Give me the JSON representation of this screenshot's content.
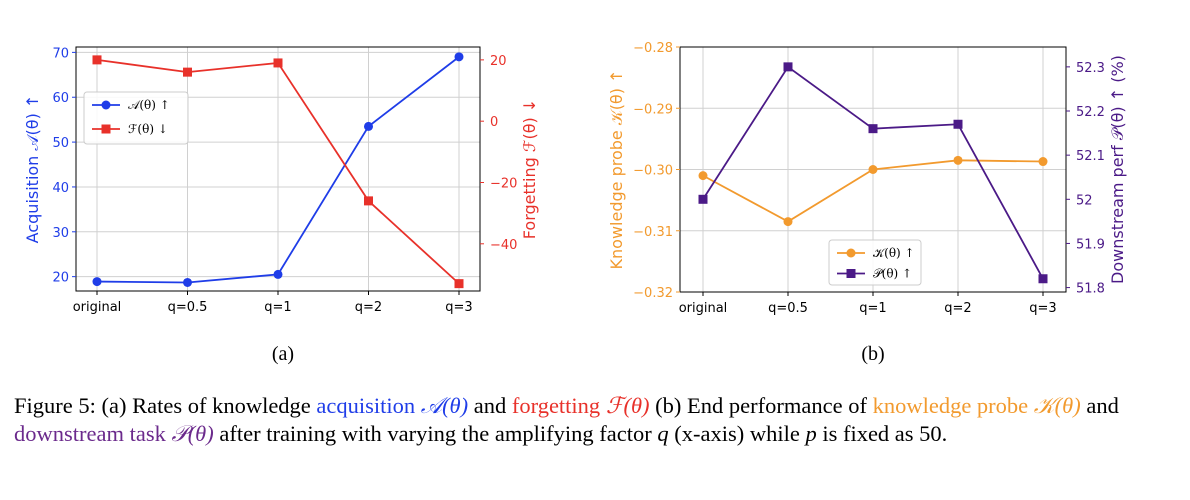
{
  "chart_data": [
    {
      "type": "line",
      "categories": [
        "original",
        "q=0.5",
        "q=1",
        "q=2",
        "q=3"
      ],
      "y_left": {
        "label": "Acquisition 𝒜(θ) ↑",
        "ticks": [
          20,
          30,
          40,
          50,
          60,
          70
        ],
        "range": [
          16.8,
          71.2
        ],
        "color": "#1f3de8"
      },
      "y_right": {
        "label": "Forgetting ℱ(θ) ↓",
        "ticks": [
          -40,
          -20,
          0,
          20
        ],
        "range": [
          -55.4,
          24.2
        ],
        "color": "#e8312a"
      },
      "series": [
        {
          "name": "𝒜(θ) ↑",
          "axis": "left",
          "marker": "circle",
          "color": "#1f3de8",
          "values": [
            18.9,
            18.7,
            20.5,
            53.5,
            69.0
          ]
        },
        {
          "name": "ℱ(θ) ↓",
          "axis": "right",
          "marker": "square",
          "color": "#e8312a",
          "values": [
            20.0,
            16.0,
            19.0,
            -26.0,
            -53.0
          ]
        }
      ],
      "legend": "upper-left",
      "grid": true,
      "sublabel": "(a)"
    },
    {
      "type": "line",
      "categories": [
        "original",
        "q=0.5",
        "q=1",
        "q=2",
        "q=3"
      ],
      "y_left": {
        "label": "Knowledge probe 𝒦(θ) ↑",
        "ticks": [
          -0.32,
          -0.31,
          -0.3,
          -0.29,
          -0.28
        ],
        "tick_labels": [
          "−0.32",
          "−0.31",
          "−0.30",
          "−0.29",
          "−0.28"
        ],
        "range": [
          -0.32,
          -0.28
        ],
        "color": "#f29a2e"
      },
      "y_right": {
        "label": "Downstream perf 𝒫(θ) ↑ (%)",
        "ticks": [
          51.8,
          51.9,
          52.0,
          52.1,
          52.2,
          52.3
        ],
        "range": [
          51.79,
          52.345
        ],
        "color": "#4b1a87"
      },
      "series": [
        {
          "name": "𝒦(θ) ↑",
          "axis": "left",
          "marker": "circle",
          "color": "#f29a2e",
          "values": [
            -0.301,
            -0.3085,
            -0.3,
            -0.2985,
            -0.2987
          ]
        },
        {
          "name": "𝒫(θ) ↑",
          "axis": "right",
          "marker": "square",
          "color": "#4b1a87",
          "values": [
            52.0,
            52.3,
            52.16,
            52.17,
            51.82
          ]
        }
      ],
      "legend": "lower-right",
      "grid": true,
      "sublabel": "(b)"
    }
  ],
  "caption": {
    "prefix": "Figure 5: (a) Rates of knowledge ",
    "acq_word": "acquisition",
    "acq_sym": "𝒜(θ)",
    "and1": " and ",
    "forg_word": "forgetting",
    "forg_sym": "ℱ(θ)",
    "mid": " (b) End performance of ",
    "know_word": "knowledge probe",
    "know_sym": "𝒦(θ)",
    "and2": " and ",
    "down_word": "downstream task",
    "down_sym": "𝒫(θ)",
    "suffix_a": " after training with varying the amplifying factor ",
    "q": "q",
    "suffix_b": " (x-axis) while ",
    "p": "p",
    "suffix_c": " is fixed as 50."
  }
}
